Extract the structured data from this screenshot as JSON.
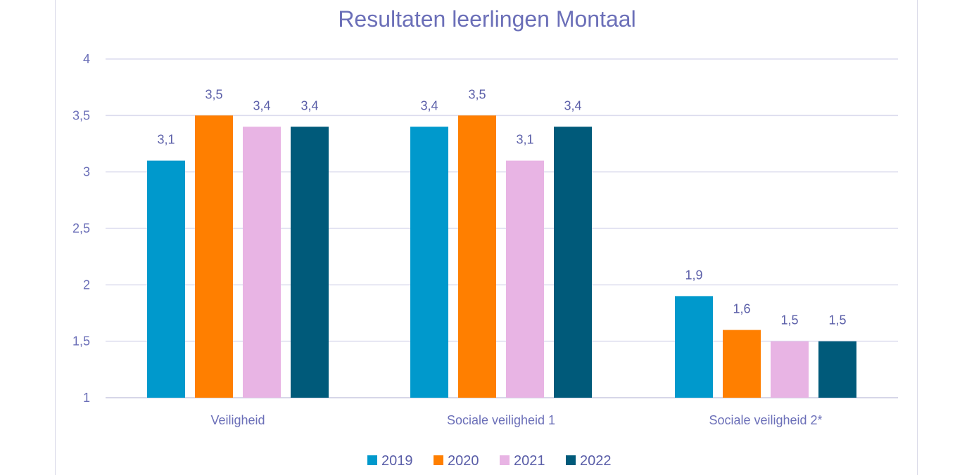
{
  "chart_data": {
    "type": "bar",
    "title": "Resultaten leerlingen Montaal",
    "xlabel": "",
    "ylabel": "",
    "categories": [
      "Veiligheid",
      "Sociale veiligheid 1",
      "Sociale veiligheid 2*"
    ],
    "series": [
      {
        "name": "2019",
        "color": "#0099cc",
        "values": [
          3.1,
          3.4,
          1.9
        ],
        "labels": [
          "3,1",
          "3,4",
          "1,9"
        ]
      },
      {
        "name": "2020",
        "color": "#ff7f00",
        "values": [
          3.5,
          3.5,
          1.6
        ],
        "labels": [
          "3,5",
          "3,5",
          "1,6"
        ]
      },
      {
        "name": "2021",
        "color": "#e8b4e4",
        "values": [
          3.4,
          3.1,
          1.5
        ],
        "labels": [
          "3,4",
          "3,1",
          "1,5"
        ]
      },
      {
        "name": "2022",
        "color": "#005a7a",
        "values": [
          3.4,
          3.4,
          1.5
        ],
        "labels": [
          "3,4",
          "3,4",
          "1,5"
        ]
      }
    ],
    "ylim": [
      1,
      4
    ],
    "yticks": [
      1,
      1.5,
      2,
      2.5,
      3,
      3.5,
      4
    ],
    "ytick_labels": [
      "1",
      "1,5",
      "2",
      "2,5",
      "3",
      "3,5",
      "4"
    ],
    "grid": true,
    "legend": "bottom"
  }
}
